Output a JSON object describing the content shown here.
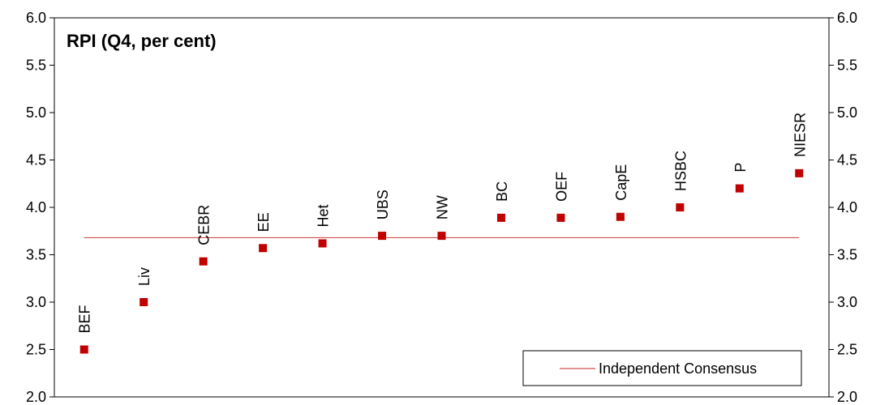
{
  "chart_data": {
    "type": "scatter",
    "title": "RPI (Q4, per cent)",
    "categories": [
      "BEF",
      "Liv",
      "CEBR",
      "EE",
      "Het",
      "UBS",
      "NW",
      "BC",
      "OEF",
      "CapE",
      "HSBC",
      "P",
      "NIESR"
    ],
    "values": [
      2.5,
      3.0,
      3.43,
      3.57,
      3.62,
      3.7,
      3.7,
      3.89,
      3.89,
      3.9,
      4.0,
      4.2,
      4.36
    ],
    "consensus": {
      "name": "Independent Consensus",
      "value": 3.68
    },
    "ylim": [
      2.0,
      6.0
    ],
    "yticks": [
      "2.0",
      "2.5",
      "3.0",
      "3.5",
      "4.0",
      "4.5",
      "5.0",
      "5.5",
      "6.0"
    ],
    "y_axis_both_sides": true,
    "grid": false,
    "legend_position": "bottom-right",
    "colors": {
      "marker": "#c00000",
      "consensus_line": "#d05050",
      "axis": "#000000"
    }
  }
}
